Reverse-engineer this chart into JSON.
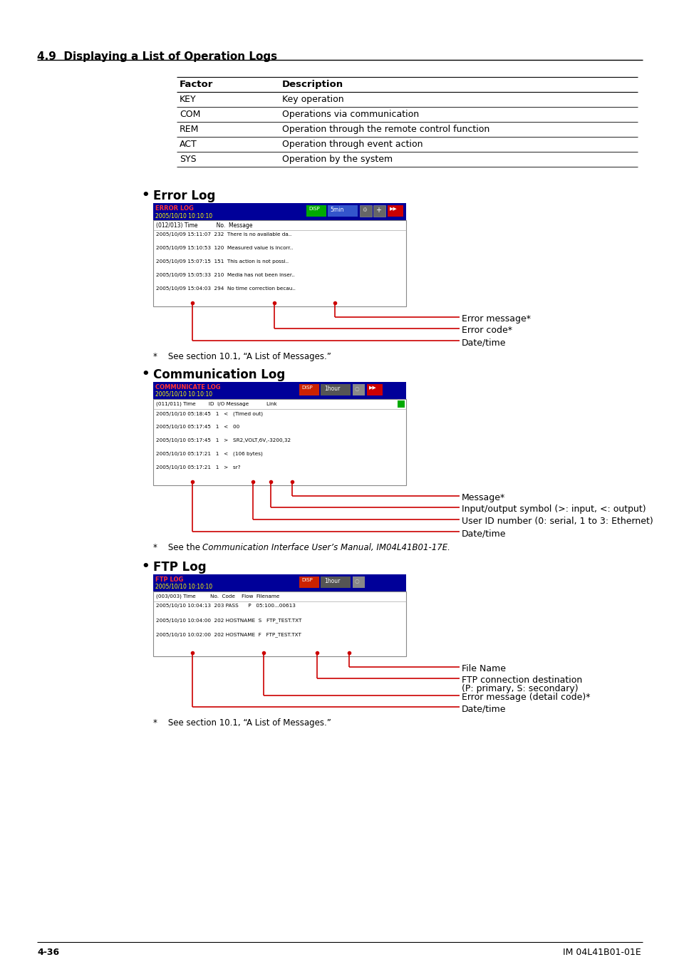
{
  "page_title": "4.9  Displaying a List of Operation Logs",
  "bg_color": "#ffffff",
  "text_color": "#000000",
  "table": {
    "headers": [
      "Factor",
      "Description"
    ],
    "rows": [
      [
        "KEY",
        "Key operation"
      ],
      [
        "COM",
        "Operations via communication"
      ],
      [
        "REM",
        "Operation through the remote control function"
      ],
      [
        "ACT",
        "Operation through event action"
      ],
      [
        "SYS",
        "Operation by the system"
      ]
    ]
  },
  "sections": [
    {
      "title": "Error Log",
      "note": "*    See section 10.1, “A List of Messages.”"
    },
    {
      "title": "Communication Log",
      "note": "*    See the Communication Interface User’s Manual, IM04L41B01-17E."
    },
    {
      "title": "FTP Log",
      "note": "*    See section 10.1, “A List of Messages.”"
    }
  ],
  "footer_left": "4-36",
  "footer_right": "IM 04L41B01-01E"
}
